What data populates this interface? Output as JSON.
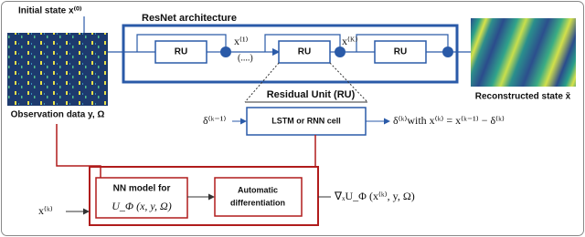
{
  "initial_state": "Initial state x⁽⁰⁾",
  "resnet": {
    "title": "ResNet architecture",
    "units": [
      "RU",
      "RU",
      "RU"
    ],
    "x1": "x⁽¹⁾",
    "dots": "(....)",
    "xK": "x⁽ᴷ⁾"
  },
  "observation_label": "Observation data y, Ω",
  "reconstructed_label": "Reconstructed state x̃",
  "residual_unit": {
    "title": "Residual Unit (RU)",
    "cell": "LSTM or RNN cell",
    "input": "δ⁽ᵏ⁻¹⁾",
    "output": "δ⁽ᵏ⁾with x⁽ᵏ⁾ = x⁽ᵏ⁻¹⁾ − δ⁽ᵏ⁾"
  },
  "nn_model": {
    "line1": "NN model for",
    "line2": "U_Φ (x, y, Ω)"
  },
  "autodiff": {
    "line1": "Automatic",
    "line2": "differentiation"
  },
  "input_x": "x⁽ᵏ⁾",
  "gradient": "∇ₓU_Φ (x⁽ᵏ⁾, y, Ω)"
}
